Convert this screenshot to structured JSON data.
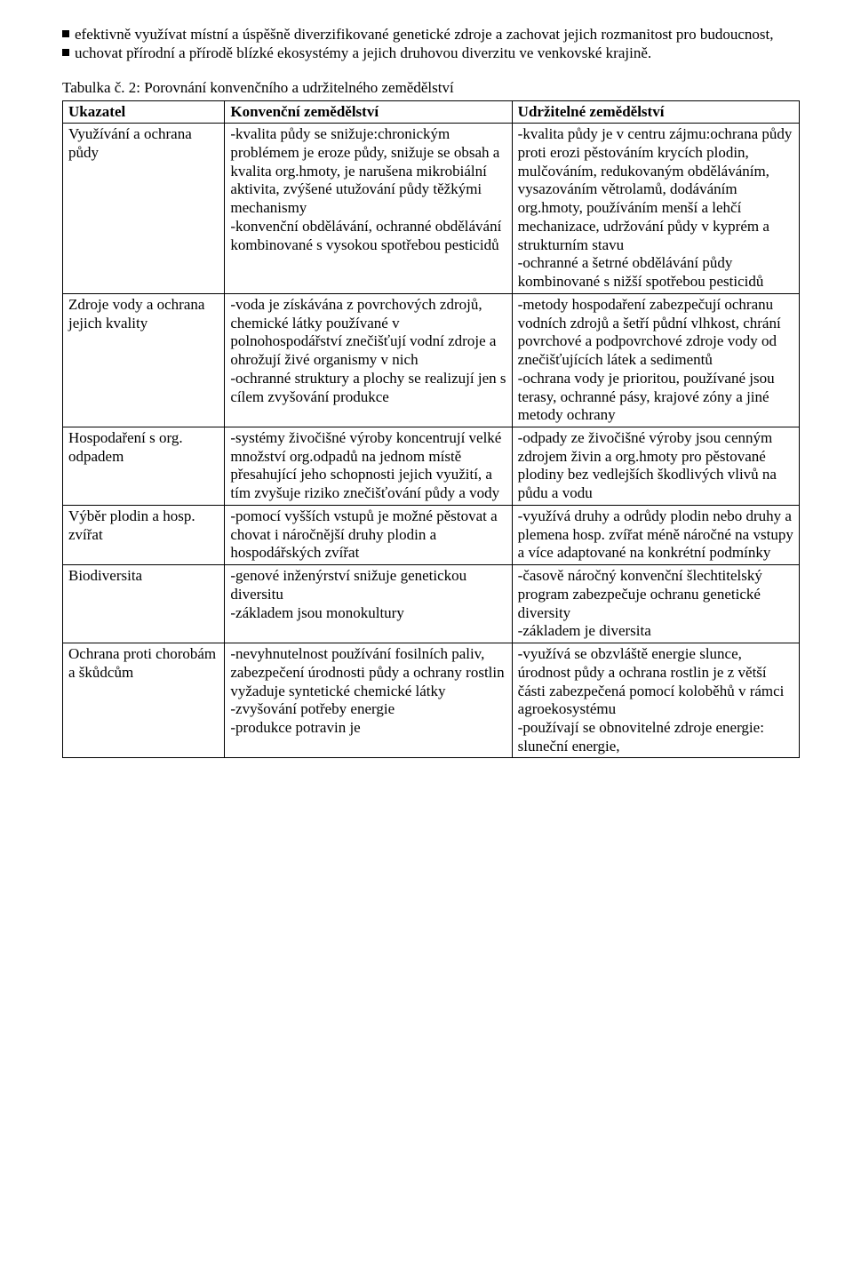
{
  "bullets": {
    "b1": "efektivně využívat místní a úspěšně diverzifikované genetické zdroje a zachovat jejich rozmanitost pro budoucnost,",
    "b2": "uchovat přírodní a přírodě blízké ekosystémy a jejich druhovou diverzitu ve venkovské krajině."
  },
  "table": {
    "caption": "Tabulka č. 2: Porovnání konvenčního a udržitelného zemědělství",
    "headers": {
      "h1": "Ukazatel",
      "h2": "Konvenční zemědělství",
      "h3": "Udržitelné zemědělství"
    },
    "rows": {
      "r1": {
        "a": "Využívání a ochrana půdy",
        "b": "-kvalita půdy se snižuje:chronickým problémem je eroze půdy, snižuje se obsah a kvalita org.hmoty, je narušena mikrobiální aktivita, zvýšené utužování půdy těžkými mechanismy\n-konvenční obdělávání, ochranné obdělávání kombinované s vysokou spotřebou pesticidů",
        "c": "-kvalita půdy je v centru zájmu:ochrana půdy proti erozi pěstováním krycích plodin, mulčováním, redukovaným obděláváním, vysazováním větrolamů, dodáváním org.hmoty, používáním menší a lehčí mechanizace, udržování půdy v kyprém a strukturním stavu\n-ochranné a šetrné obdělávání půdy kombinované s nižší spotřebou pesticidů"
      },
      "r2": {
        "a": "Zdroje vody a ochrana jejich kvality",
        "b": "-voda je získávána z povrchových zdrojů, chemické látky používané v polnohospodářství znečišťují vodní zdroje a ohrožují živé organismy v nich\n-ochranné struktury a plochy se realizují jen s cílem zvyšování produkce",
        "c": "-metody hospodaření zabezpečují ochranu vodních zdrojů a šetří půdní vlhkost, chrání povrchové a podpovrchové zdroje vody od znečišťujících látek a sedimentů\n-ochrana vody je prioritou, používané jsou terasy, ochranné pásy, krajové zóny a jiné metody ochrany"
      },
      "r3": {
        "a": "Hospodaření s org. odpadem",
        "b": "-systémy živočišné výroby koncentrují velké množství org.odpadů na jednom místě přesahující jeho schopnosti jejich využití, a tím zvyšuje riziko znečišťování půdy a vody",
        "c": "-odpady ze živočišné výroby jsou cenným zdrojem živin a org.hmoty pro pěstované plodiny bez vedlejších škodlivých vlivů na půdu a vodu"
      },
      "r4": {
        "a": "Výběr plodin a hosp. zvířat",
        "b": "-pomocí vyšších vstupů je možné pěstovat a chovat i náročnější druhy plodin a hospodářských zvířat",
        "c": "-využívá druhy a odrůdy plodin nebo druhy a plemena hosp. zvířat méně náročné na vstupy a více adaptované na konkrétní podmínky"
      },
      "r5": {
        "a": "Biodiversita",
        "b": "-genové inženýrství snižuje genetickou diversitu\n-základem jsou monokultury",
        "c": "-časově náročný konvenční šlechtitelský program zabezpečuje ochranu genetické diversity\n-základem je diversita"
      },
      "r6": {
        "a": "Ochrana proti chorobám a škůdcům",
        "b": "-nevyhnutelnost používání fosilních paliv, zabezpečení úrodnosti půdy a ochrany rostlin vyžaduje syntetické chemické látky\n-zvyšování potřeby energie\n-produkce potravin je",
        "c": "-využívá se obzvláště energie slunce, úrodnost půdy a ochrana rostlin je z větší části zabezpečená pomocí koloběhů v rámci agroekosystému\n-používají se obnovitelné zdroje energie: sluneční energie,"
      }
    }
  }
}
